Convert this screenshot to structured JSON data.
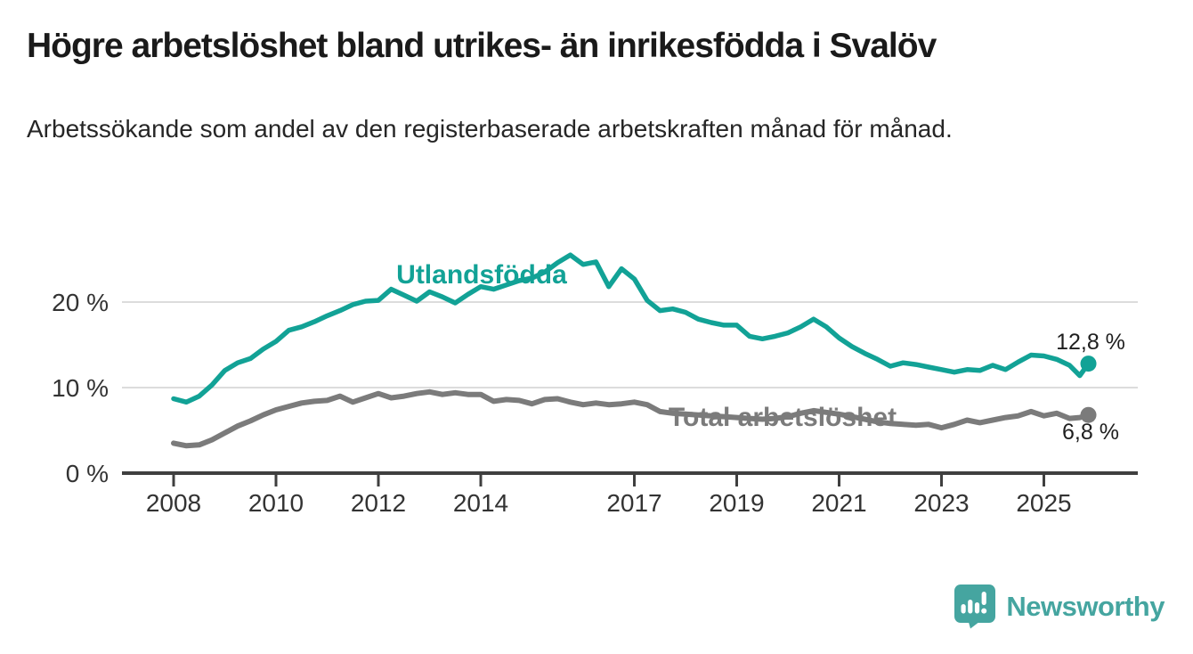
{
  "header": {
    "title": "Högre arbetslöshet bland utrikes- än inrikesfödda i Svalöv",
    "subtitle": "Arbetssökande som andel av den registerbaserade arbetskraften månad för månad."
  },
  "footer": {
    "brand": "Newsworthy"
  },
  "colors": {
    "series_foreign_born": "#12a296",
    "series_total": "#7b7b7b",
    "gridline": "#dcdcdc",
    "axis": "#3f3f3f",
    "axis_text": "#333333",
    "value_label_text": "#1f1f1f",
    "logo_teal": "#45a5a0"
  },
  "chart_data": {
    "type": "line",
    "title": "Högre arbetslöshet bland utrikes- än inrikesfödda i Svalöv",
    "subtitle": "Arbetssökande som andel av den registerbaserade arbetskraften månad för månad.",
    "unit": "%",
    "grid": "horizontal",
    "legend_position": "inline-labels",
    "ylim": [
      0,
      27.5
    ],
    "xlim": [
      2007.0,
      2026.8
    ],
    "y_ticks": [
      {
        "value": 0,
        "label": "0 %"
      },
      {
        "value": 10,
        "label": "10 %"
      },
      {
        "value": 20,
        "label": "20 %"
      }
    ],
    "x_ticks": [
      {
        "value": 2008,
        "label": "2008"
      },
      {
        "value": 2010,
        "label": "2010"
      },
      {
        "value": 2012,
        "label": "2012"
      },
      {
        "value": 2014,
        "label": "2014"
      },
      {
        "value": 2017,
        "label": "2017"
      },
      {
        "value": 2019,
        "label": "2019"
      },
      {
        "value": 2021,
        "label": "2021"
      },
      {
        "value": 2023,
        "label": "2023"
      },
      {
        "value": 2025,
        "label": "2025"
      }
    ],
    "series": [
      {
        "name": "Utlandsfödda",
        "color": "#12a296",
        "end_value": 12.8,
        "end_value_label": "12,8 %",
        "points": [
          [
            2008.0,
            8.7
          ],
          [
            2008.25,
            8.3
          ],
          [
            2008.5,
            9.0
          ],
          [
            2008.75,
            10.3
          ],
          [
            2009.0,
            12.0
          ],
          [
            2009.25,
            12.9
          ],
          [
            2009.5,
            13.4
          ],
          [
            2009.75,
            14.5
          ],
          [
            2010.0,
            15.4
          ],
          [
            2010.25,
            16.7
          ],
          [
            2010.5,
            17.1
          ],
          [
            2010.75,
            17.7
          ],
          [
            2011.0,
            18.4
          ],
          [
            2011.25,
            19.0
          ],
          [
            2011.5,
            19.7
          ],
          [
            2011.75,
            20.1
          ],
          [
            2012.0,
            20.2
          ],
          [
            2012.25,
            21.5
          ],
          [
            2012.5,
            20.8
          ],
          [
            2012.75,
            20.1
          ],
          [
            2013.0,
            21.2
          ],
          [
            2013.25,
            20.6
          ],
          [
            2013.5,
            19.9
          ],
          [
            2013.75,
            20.9
          ],
          [
            2014.0,
            21.8
          ],
          [
            2014.25,
            21.5
          ],
          [
            2014.5,
            22.0
          ],
          [
            2014.75,
            22.5
          ],
          [
            2015.0,
            22.8
          ],
          [
            2015.25,
            23.5
          ],
          [
            2015.5,
            24.6
          ],
          [
            2015.75,
            25.5
          ],
          [
            2016.0,
            24.4
          ],
          [
            2016.25,
            24.7
          ],
          [
            2016.5,
            21.8
          ],
          [
            2016.75,
            23.9
          ],
          [
            2017.0,
            22.7
          ],
          [
            2017.25,
            20.2
          ],
          [
            2017.5,
            19.0
          ],
          [
            2017.75,
            19.2
          ],
          [
            2018.0,
            18.8
          ],
          [
            2018.25,
            18.0
          ],
          [
            2018.5,
            17.6
          ],
          [
            2018.75,
            17.3
          ],
          [
            2019.0,
            17.3
          ],
          [
            2019.25,
            16.0
          ],
          [
            2019.5,
            15.7
          ],
          [
            2019.75,
            16.0
          ],
          [
            2020.0,
            16.4
          ],
          [
            2020.25,
            17.1
          ],
          [
            2020.5,
            18.0
          ],
          [
            2020.75,
            17.1
          ],
          [
            2021.0,
            15.8
          ],
          [
            2021.25,
            14.8
          ],
          [
            2021.5,
            14.0
          ],
          [
            2021.75,
            13.3
          ],
          [
            2022.0,
            12.5
          ],
          [
            2022.25,
            12.9
          ],
          [
            2022.5,
            12.7
          ],
          [
            2022.75,
            12.4
          ],
          [
            2023.0,
            12.1
          ],
          [
            2023.25,
            11.8
          ],
          [
            2023.5,
            12.1
          ],
          [
            2023.75,
            12.0
          ],
          [
            2024.0,
            12.6
          ],
          [
            2024.25,
            12.1
          ],
          [
            2024.5,
            13.0
          ],
          [
            2024.75,
            13.8
          ],
          [
            2025.0,
            13.7
          ],
          [
            2025.25,
            13.3
          ],
          [
            2025.5,
            12.6
          ],
          [
            2025.7,
            11.4
          ],
          [
            2025.87,
            12.8
          ]
        ]
      },
      {
        "name": "Total arbetslöshet",
        "color": "#7b7b7b",
        "end_value": 6.8,
        "end_value_label": "6,8 %",
        "points": [
          [
            2008.0,
            3.5
          ],
          [
            2008.25,
            3.2
          ],
          [
            2008.5,
            3.3
          ],
          [
            2008.75,
            3.9
          ],
          [
            2009.0,
            4.7
          ],
          [
            2009.25,
            5.5
          ],
          [
            2009.5,
            6.1
          ],
          [
            2009.75,
            6.8
          ],
          [
            2010.0,
            7.4
          ],
          [
            2010.25,
            7.8
          ],
          [
            2010.5,
            8.2
          ],
          [
            2010.75,
            8.4
          ],
          [
            2011.0,
            8.5
          ],
          [
            2011.25,
            9.0
          ],
          [
            2011.5,
            8.3
          ],
          [
            2011.75,
            8.8
          ],
          [
            2012.0,
            9.3
          ],
          [
            2012.25,
            8.8
          ],
          [
            2012.5,
            9.0
          ],
          [
            2012.75,
            9.3
          ],
          [
            2013.0,
            9.5
          ],
          [
            2013.25,
            9.2
          ],
          [
            2013.5,
            9.4
          ],
          [
            2013.75,
            9.2
          ],
          [
            2014.0,
            9.2
          ],
          [
            2014.25,
            8.4
          ],
          [
            2014.5,
            8.6
          ],
          [
            2014.75,
            8.5
          ],
          [
            2015.0,
            8.1
          ],
          [
            2015.25,
            8.6
          ],
          [
            2015.5,
            8.7
          ],
          [
            2015.75,
            8.3
          ],
          [
            2016.0,
            8.0
          ],
          [
            2016.25,
            8.2
          ],
          [
            2016.5,
            8.0
          ],
          [
            2016.75,
            8.1
          ],
          [
            2017.0,
            8.3
          ],
          [
            2017.25,
            8.0
          ],
          [
            2017.5,
            7.2
          ],
          [
            2017.75,
            7.0
          ],
          [
            2018.0,
            6.9
          ],
          [
            2018.25,
            6.8
          ],
          [
            2018.5,
            6.7
          ],
          [
            2018.75,
            6.6
          ],
          [
            2019.0,
            6.5
          ],
          [
            2019.25,
            6.4
          ],
          [
            2019.5,
            6.3
          ],
          [
            2019.75,
            6.4
          ],
          [
            2020.0,
            6.6
          ],
          [
            2020.25,
            7.0
          ],
          [
            2020.5,
            7.3
          ],
          [
            2020.75,
            7.1
          ],
          [
            2021.0,
            6.9
          ],
          [
            2021.25,
            6.6
          ],
          [
            2021.5,
            6.3
          ],
          [
            2021.75,
            6.0
          ],
          [
            2022.0,
            5.8
          ],
          [
            2022.25,
            5.7
          ],
          [
            2022.5,
            5.6
          ],
          [
            2022.75,
            5.7
          ],
          [
            2023.0,
            5.3
          ],
          [
            2023.25,
            5.7
          ],
          [
            2023.5,
            6.2
          ],
          [
            2023.75,
            5.9
          ],
          [
            2024.0,
            6.2
          ],
          [
            2024.25,
            6.5
          ],
          [
            2024.5,
            6.7
          ],
          [
            2024.75,
            7.2
          ],
          [
            2025.0,
            6.7
          ],
          [
            2025.25,
            7.0
          ],
          [
            2025.5,
            6.4
          ],
          [
            2025.7,
            6.5
          ],
          [
            2025.87,
            6.8
          ]
        ]
      }
    ]
  }
}
